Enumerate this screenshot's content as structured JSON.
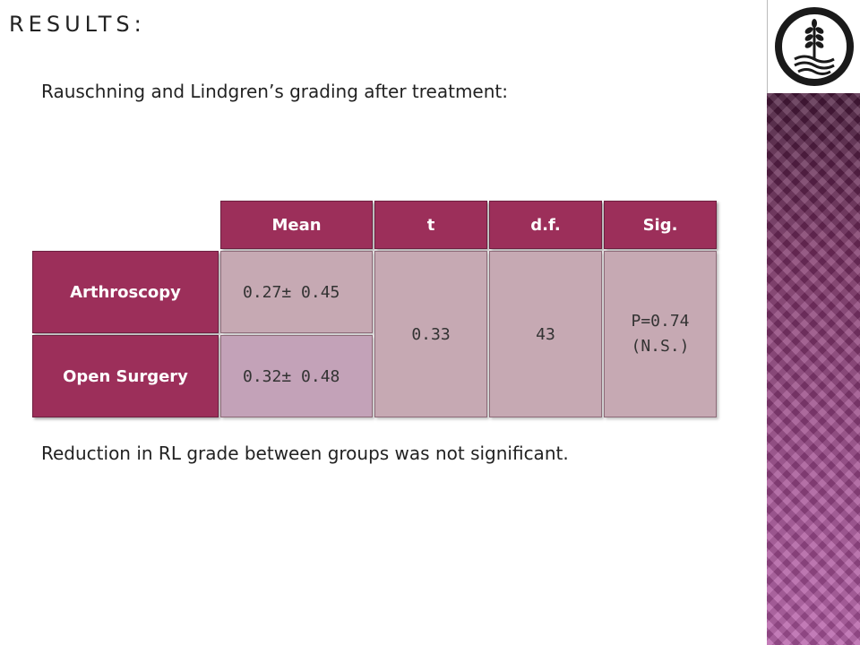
{
  "slide": {
    "title": "RESULTS:",
    "subtitle": "Rauschning and Lindgren’s grading after treatment:",
    "footnote": "Reduction in RL grade between groups was not significant."
  },
  "logo": {
    "icon": "wheat-emblem-icon"
  },
  "table": {
    "headers": [
      "Mean",
      "t",
      "d.f.",
      "Sig."
    ],
    "rows": [
      {
        "label": "Arthroscopy",
        "mean": "0.27± 0.45"
      },
      {
        "label": "Open Surgery",
        "mean": "0.32± 0.48"
      }
    ],
    "t": "0.33",
    "df": "43",
    "sig_line1": "P=0.74",
    "sig_line2": "(N.S.)"
  },
  "colors": {
    "header": "#9c2f5a",
    "cell": "#c6a9b3",
    "panel": "#7a2f63"
  }
}
